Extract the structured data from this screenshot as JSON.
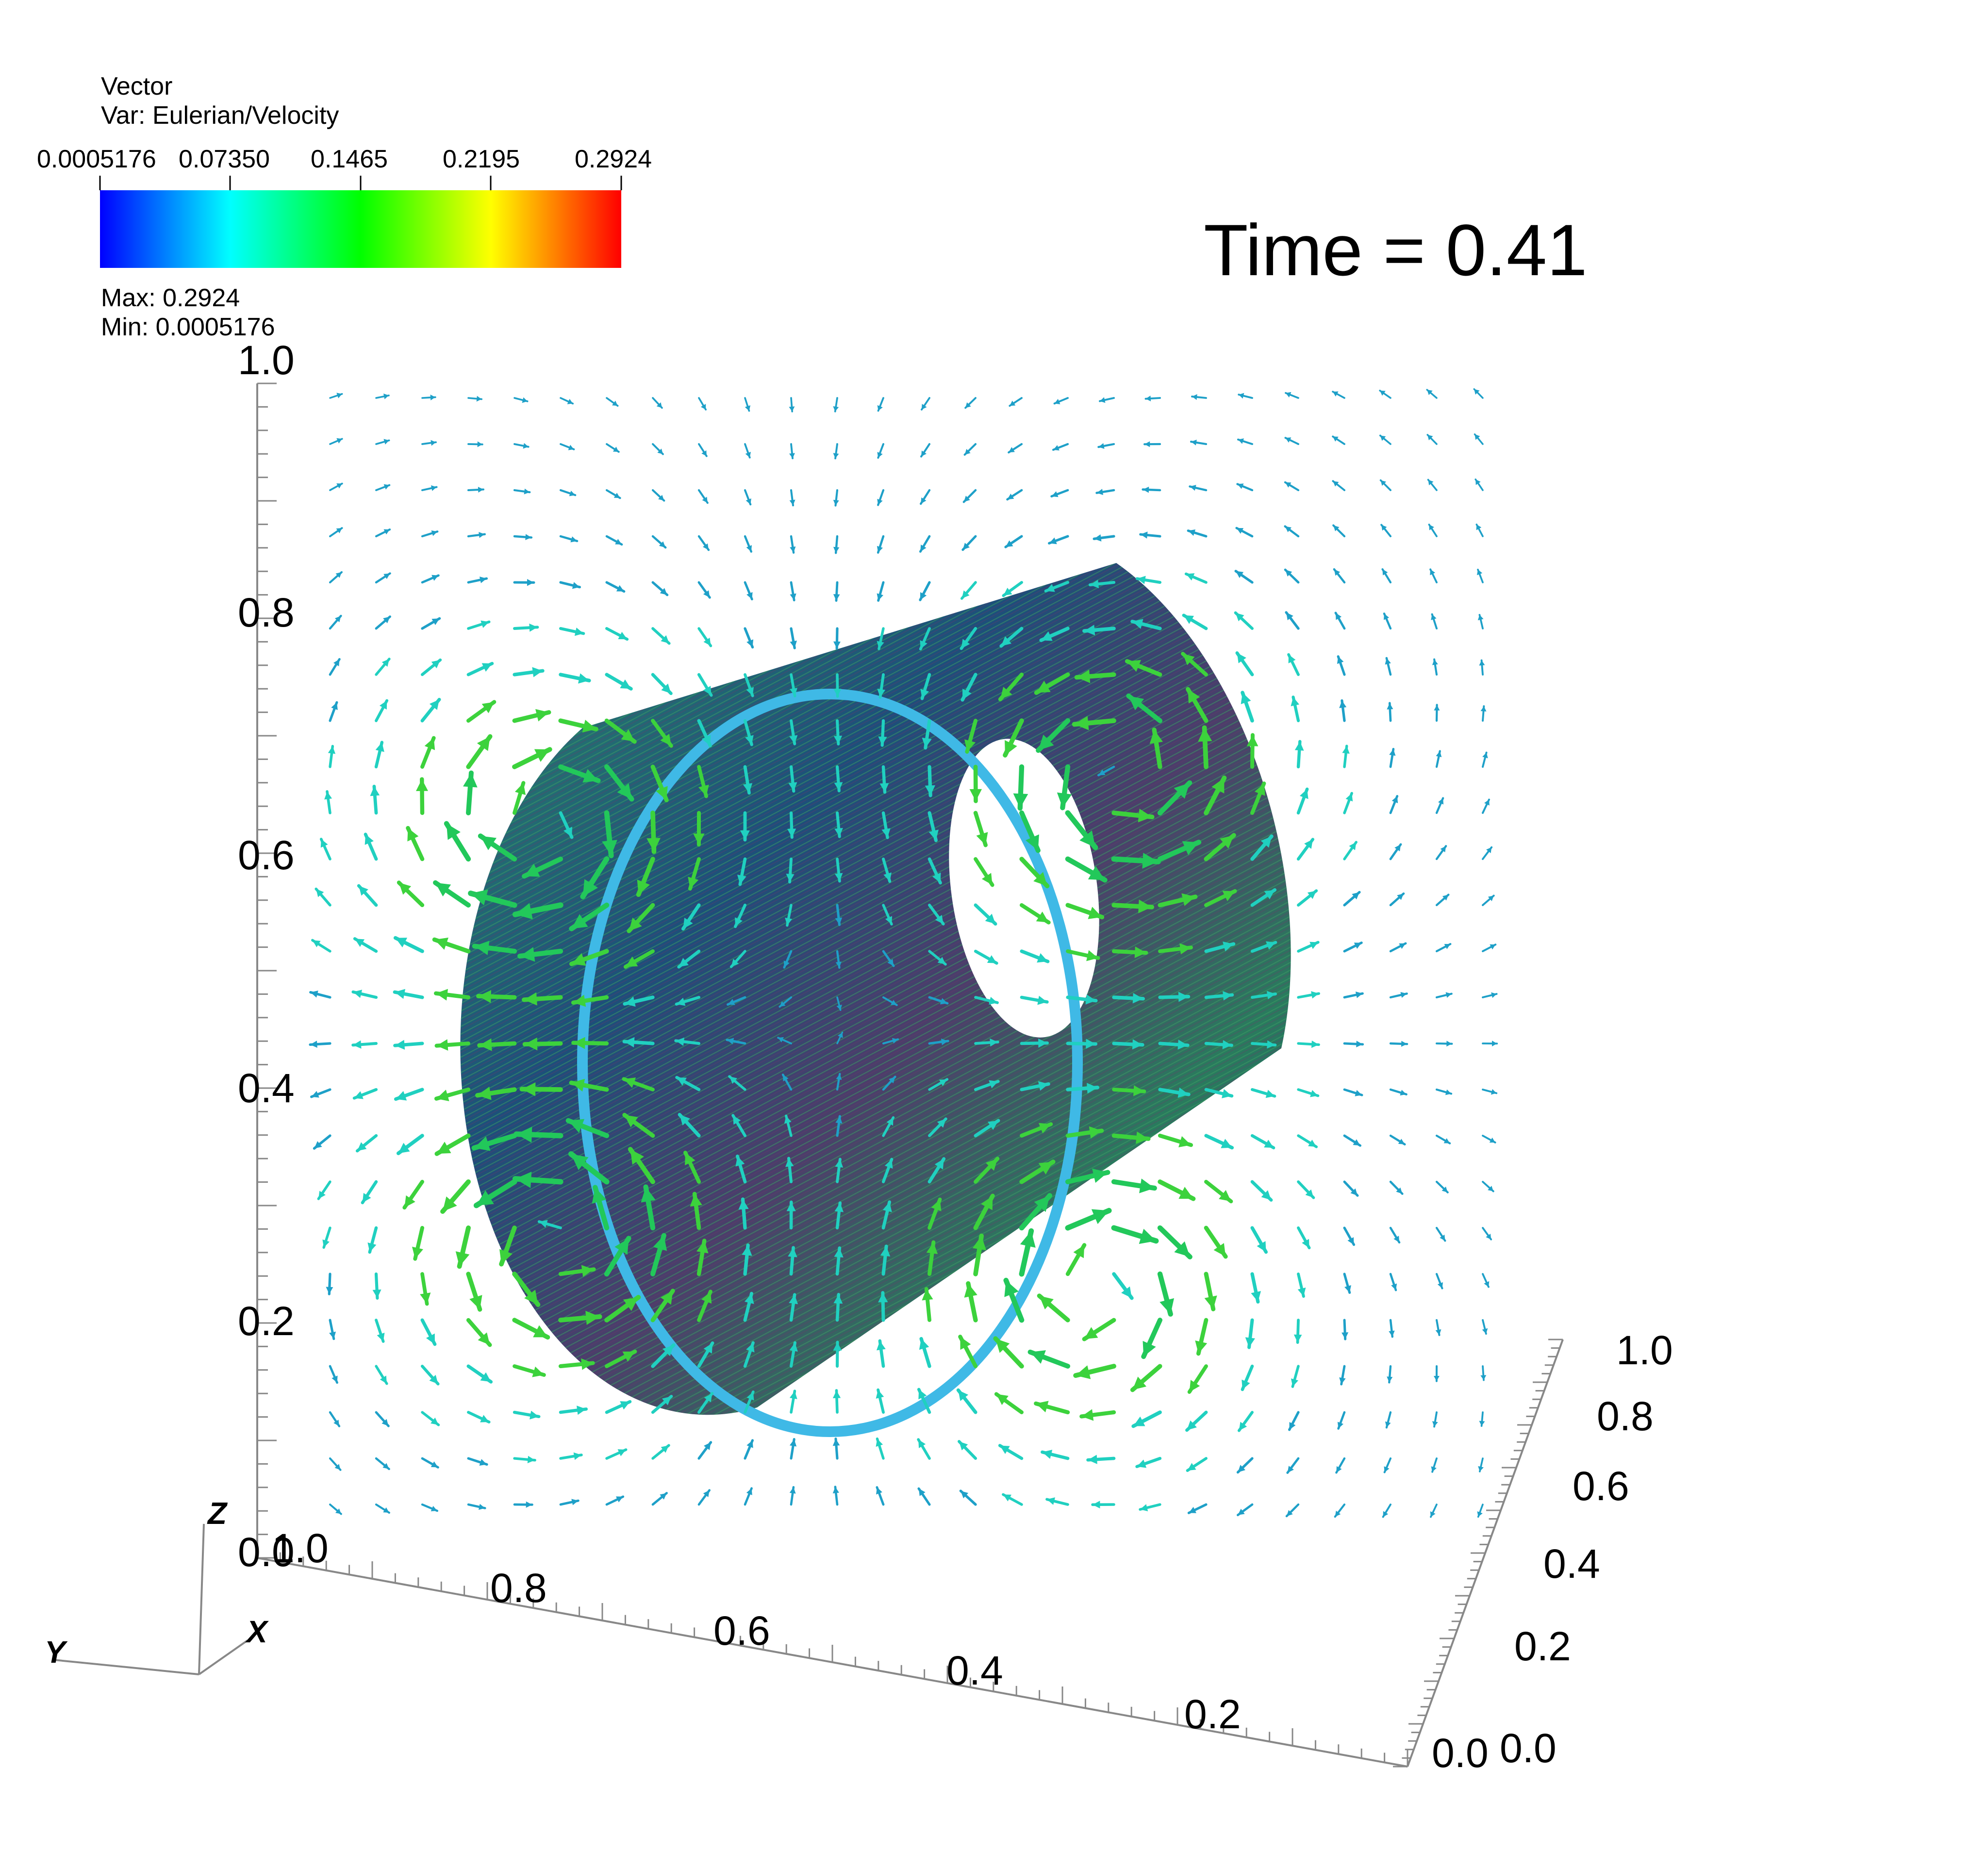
{
  "legend": {
    "title": "Vector",
    "var_label": "Var: Eulerian/Velocity",
    "ticks": [
      "0.0005176",
      "0.07350",
      "0.1465",
      "0.2195",
      "0.2924"
    ],
    "max_text": "Max:  0.2924",
    "min_text": "Min:  0.0005176",
    "colors": [
      "#0000ff",
      "#00ffff",
      "#00ff00",
      "#ffff00",
      "#ff0000"
    ]
  },
  "time_label": "Time = 0.41",
  "axes": {
    "z_ticks": [
      "0.0",
      "0.2",
      "0.4",
      "0.6",
      "0.8",
      "1.0"
    ],
    "x_ticks": [
      "1.0",
      "0.8",
      "0.6",
      "0.4",
      "0.2"
    ],
    "y_ticks": [
      "0.0",
      "0.0",
      "0.2",
      "0.4",
      "0.6",
      "0.8",
      "1.0"
    ],
    "triad": {
      "x": "X",
      "y": "Y",
      "z": "Z"
    }
  },
  "scene": {
    "cylinder_color": "#2e6f6a",
    "rim_color": "#3fb9e6",
    "arrow_colors": [
      "#1ea0c8",
      "#20d0c0",
      "#3cd23c",
      "#22c85a",
      "#c8e628",
      "#f0c81e",
      "#f08c14",
      "#f04614"
    ]
  }
}
